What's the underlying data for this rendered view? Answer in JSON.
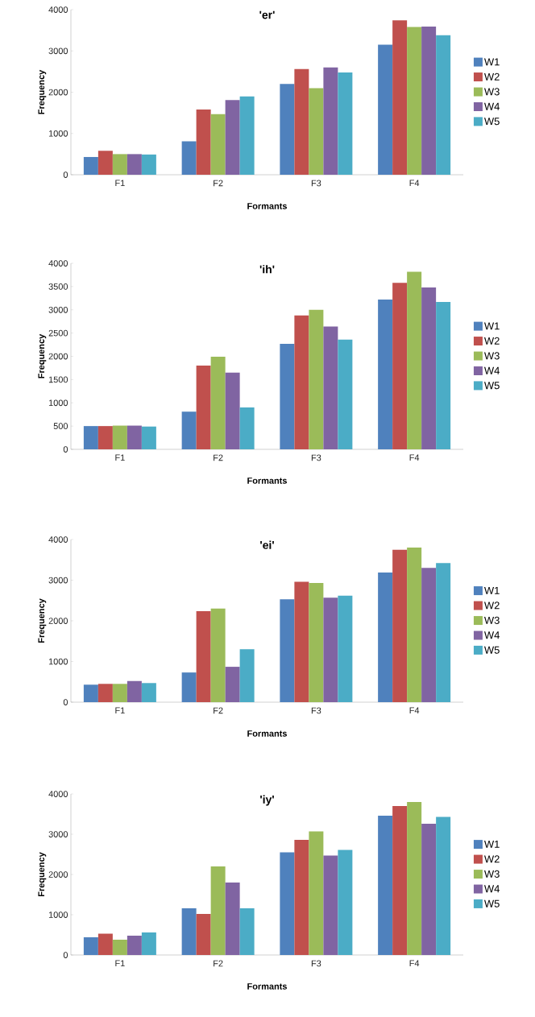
{
  "chart_data": [
    {
      "type": "bar",
      "title": "'er'",
      "xlabel": "Formants",
      "ylabel": "Frequency",
      "categories": [
        "F1",
        "F2",
        "F3",
        "F4"
      ],
      "ylim": [
        0,
        4000
      ],
      "yticks": [
        0,
        1000,
        2000,
        3000,
        4000
      ],
      "legend": "right",
      "grid": false,
      "series": [
        {
          "name": "W1",
          "color": "#4f81bd",
          "values": [
            430,
            810,
            2200,
            3150
          ]
        },
        {
          "name": "W2",
          "color": "#c0504d",
          "values": [
            580,
            1580,
            2560,
            3740
          ]
        },
        {
          "name": "W3",
          "color": "#9bbb59",
          "values": [
            500,
            1470,
            2100,
            3580
          ]
        },
        {
          "name": "W4",
          "color": "#8064a2",
          "values": [
            500,
            1810,
            2600,
            3590
          ]
        },
        {
          "name": "W5",
          "color": "#4bacc6",
          "values": [
            490,
            1900,
            2480,
            3380
          ]
        }
      ]
    },
    {
      "type": "bar",
      "title": "'ih'",
      "xlabel": "Formants",
      "ylabel": "Frequency",
      "categories": [
        "F1",
        "F2",
        "F3",
        "F4"
      ],
      "ylim": [
        0,
        4000
      ],
      "yticks": [
        0,
        500,
        1000,
        1500,
        2000,
        2500,
        3000,
        3500,
        4000
      ],
      "legend": "right",
      "grid": false,
      "series": [
        {
          "name": "W1",
          "color": "#4f81bd",
          "values": [
            500,
            810,
            2270,
            3220
          ]
        },
        {
          "name": "W2",
          "color": "#c0504d",
          "values": [
            500,
            1800,
            2880,
            3580
          ]
        },
        {
          "name": "W3",
          "color": "#9bbb59",
          "values": [
            510,
            1990,
            3000,
            3820
          ]
        },
        {
          "name": "W4",
          "color": "#8064a2",
          "values": [
            510,
            1650,
            2640,
            3480
          ]
        },
        {
          "name": "W5",
          "color": "#4bacc6",
          "values": [
            490,
            900,
            2360,
            3170
          ]
        }
      ]
    },
    {
      "type": "bar",
      "title": "'ei'",
      "xlabel": "Formants",
      "ylabel": "Frequency",
      "categories": [
        "F1",
        "F2",
        "F3",
        "F4"
      ],
      "ylim": [
        0,
        4000
      ],
      "yticks": [
        0,
        1000,
        2000,
        3000,
        4000
      ],
      "legend": "right",
      "grid": false,
      "series": [
        {
          "name": "W1",
          "color": "#4f81bd",
          "values": [
            430,
            730,
            2530,
            3190
          ]
        },
        {
          "name": "W2",
          "color": "#c0504d",
          "values": [
            450,
            2240,
            2960,
            3750
          ]
        },
        {
          "name": "W3",
          "color": "#9bbb59",
          "values": [
            450,
            2300,
            2930,
            3800
          ]
        },
        {
          "name": "W4",
          "color": "#8064a2",
          "values": [
            520,
            870,
            2570,
            3300
          ]
        },
        {
          "name": "W5",
          "color": "#4bacc6",
          "values": [
            470,
            1300,
            2620,
            3420
          ]
        }
      ]
    },
    {
      "type": "bar",
      "title": "'iy'",
      "xlabel": "Formants",
      "ylabel": "Frequency",
      "categories": [
        "F1",
        "F2",
        "F3",
        "F4"
      ],
      "ylim": [
        0,
        4000
      ],
      "yticks": [
        0,
        1000,
        2000,
        3000,
        4000
      ],
      "legend": "right",
      "grid": false,
      "series": [
        {
          "name": "W1",
          "color": "#4f81bd",
          "values": [
            440,
            1160,
            2550,
            3460
          ]
        },
        {
          "name": "W2",
          "color": "#c0504d",
          "values": [
            530,
            1020,
            2860,
            3700
          ]
        },
        {
          "name": "W3",
          "color": "#9bbb59",
          "values": [
            380,
            2200,
            3070,
            3800
          ]
        },
        {
          "name": "W4",
          "color": "#8064a2",
          "values": [
            480,
            1800,
            2470,
            3260
          ]
        },
        {
          "name": "W5",
          "color": "#4bacc6",
          "values": [
            560,
            1160,
            2610,
            3430
          ]
        }
      ]
    }
  ]
}
